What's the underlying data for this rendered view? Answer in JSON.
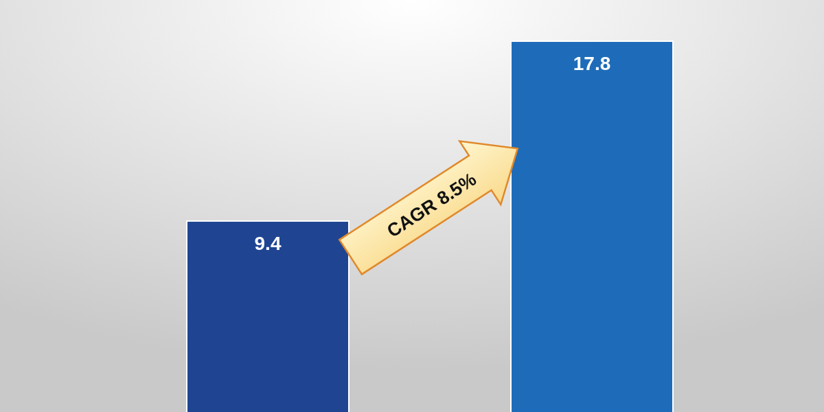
{
  "chart_data": {
    "type": "bar",
    "categories": [
      null,
      null
    ],
    "values": [
      9.4,
      17.8
    ],
    "colors": [
      "#1f4592",
      "#1e6cb9"
    ],
    "data_labels": true,
    "annotations": [
      "CAGR 8.5%"
    ]
  }
}
